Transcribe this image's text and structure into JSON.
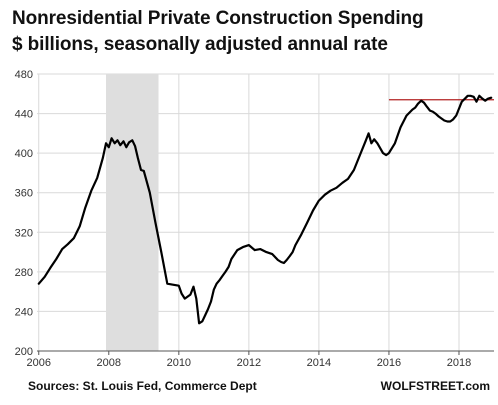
{
  "chart_data": {
    "type": "line",
    "title": "Nonresidential Private Construction Spending",
    "subtitle": "$ billions, seasonally adjusted annual rate",
    "xlabel": "",
    "ylabel": "",
    "xlim": [
      2005.95,
      2019.0
    ],
    "ylim": [
      200,
      480
    ],
    "yticks": [
      200,
      240,
      280,
      320,
      360,
      400,
      440,
      480
    ],
    "xticks": [
      2006,
      2008,
      2010,
      2012,
      2014,
      2016,
      2018
    ],
    "grid": true,
    "recession_band": {
      "from": 2007.92,
      "to": 2009.42
    },
    "reference_line": {
      "value": 454,
      "from": 2016.0,
      "to": 2019.0,
      "color": "#b22222"
    },
    "series": [
      {
        "color": "#000000",
        "x": [
          2006.0,
          2006.17,
          2006.33,
          2006.5,
          2006.67,
          2006.83,
          2007.0,
          2007.17,
          2007.33,
          2007.5,
          2007.67,
          2007.83,
          2007.92,
          2008.0,
          2008.08,
          2008.17,
          2008.25,
          2008.33,
          2008.42,
          2008.5,
          2008.58,
          2008.67,
          2008.75,
          2008.83,
          2008.92,
          2009.0,
          2009.17,
          2009.33,
          2009.5,
          2009.67,
          2009.83,
          2010.0,
          2010.08,
          2010.17,
          2010.25,
          2010.33,
          2010.42,
          2010.5,
          2010.58,
          2010.67,
          2010.75,
          2010.83,
          2010.92,
          2011.0,
          2011.08,
          2011.17,
          2011.25,
          2011.33,
          2011.42,
          2011.5,
          2011.67,
          2011.83,
          2012.0,
          2012.17,
          2012.33,
          2012.5,
          2012.67,
          2012.83,
          2012.92,
          2013.0,
          2013.08,
          2013.17,
          2013.25,
          2013.33,
          2013.5,
          2013.67,
          2013.83,
          2014.0,
          2014.17,
          2014.33,
          2014.5,
          2014.67,
          2014.83,
          2015.0,
          2015.17,
          2015.33,
          2015.42,
          2015.5,
          2015.58,
          2015.67,
          2015.75,
          2015.83,
          2015.92,
          2016.0,
          2016.17,
          2016.33,
          2016.5,
          2016.67,
          2016.75,
          2016.83,
          2016.92,
          2017.0,
          2017.08,
          2017.17,
          2017.25,
          2017.33,
          2017.42,
          2017.5,
          2017.58,
          2017.67,
          2017.75,
          2017.83,
          2017.92,
          2018.0,
          2018.08,
          2018.17,
          2018.25,
          2018.33,
          2018.42,
          2018.5,
          2018.58,
          2018.67,
          2018.75,
          2018.83,
          2018.92
        ],
        "y": [
          268,
          275,
          284,
          293,
          303,
          308,
          314,
          326,
          345,
          362,
          375,
          395,
          410,
          406,
          415,
          410,
          413,
          408,
          412,
          406,
          411,
          413,
          407,
          395,
          383,
          382,
          360,
          330,
          300,
          268,
          267,
          266,
          258,
          253,
          255,
          257,
          265,
          253,
          228,
          230,
          236,
          242,
          250,
          262,
          268,
          272,
          276,
          280,
          285,
          293,
          302,
          305,
          307,
          302,
          303,
          300,
          298,
          292,
          290,
          289,
          292,
          296,
          300,
          307,
          318,
          330,
          342,
          352,
          358,
          362,
          365,
          370,
          374,
          383,
          398,
          412,
          420,
          410,
          414,
          410,
          405,
          400,
          398,
          400,
          410,
          426,
          438,
          444,
          446,
          450,
          453,
          451,
          447,
          443,
          442,
          440,
          437,
          435,
          433,
          432,
          432,
          434,
          438,
          445,
          452,
          455,
          458,
          458,
          457,
          452,
          458,
          455,
          453,
          455,
          456
        ]
      }
    ],
    "sources": "Sources: St. Louis Fed, Commerce Dept",
    "brand": "WOLFSTREET.com"
  }
}
